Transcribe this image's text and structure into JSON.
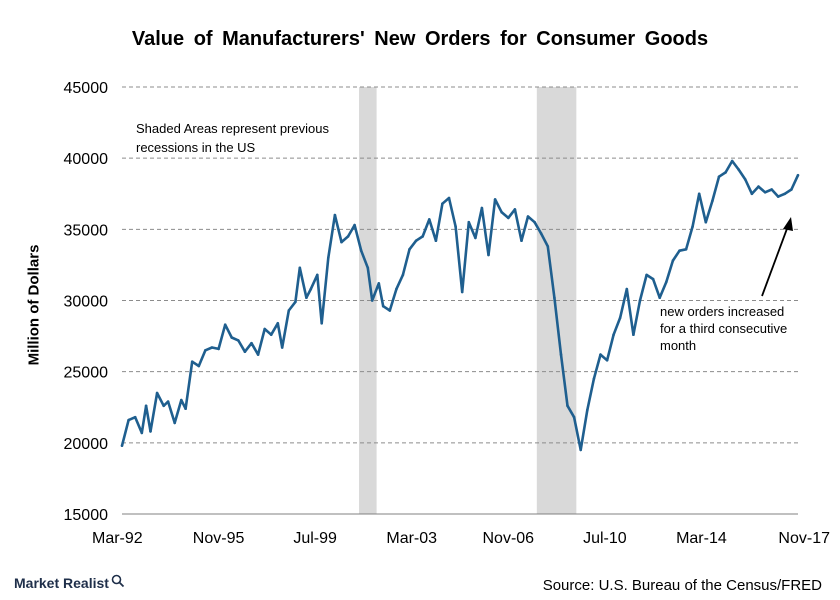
{
  "chart_data": {
    "type": "line",
    "title": "Value of Manufacturers' New Orders for Consumer Goods",
    "ylabel": "Million of Dollars",
    "xlabel": "",
    "ylim": [
      15000,
      45000
    ],
    "y_ticks": [
      15000,
      20000,
      25000,
      30000,
      35000,
      40000,
      45000
    ],
    "y_tick_labels": [
      "15000",
      "20000",
      "25000",
      "30000",
      "35000",
      "40000",
      "45000"
    ],
    "x_ticks": [
      "1992-03",
      "1995-11",
      "1999-07",
      "2003-03",
      "2006-11",
      "2010-07",
      "2014-03",
      "2017-11"
    ],
    "x_tick_labels": [
      "Mar-92",
      "Nov-95",
      "Jul-99",
      "Mar-03",
      "Nov-06",
      "Jul-10",
      "Mar-14",
      "Nov-17"
    ],
    "grid": "horizontal dashed",
    "line_color": "#1f5f8f",
    "shade_color": "#d9d9d9",
    "recessions": [
      {
        "start": "2001-03",
        "end": "2001-11"
      },
      {
        "start": "2007-12",
        "end": "2009-06"
      }
    ],
    "series": [
      {
        "points": [
          [
            "1992-03",
            19800
          ],
          [
            "1992-06",
            21600
          ],
          [
            "1992-09",
            21800
          ],
          [
            "1992-12",
            20700
          ],
          [
            "1993-02",
            22600
          ],
          [
            "1993-04",
            20800
          ],
          [
            "1993-07",
            23500
          ],
          [
            "1993-10",
            22600
          ],
          [
            "1993-12",
            22900
          ],
          [
            "1994-03",
            21400
          ],
          [
            "1994-06",
            23000
          ],
          [
            "1994-08",
            22400
          ],
          [
            "1994-11",
            25700
          ],
          [
            "1995-02",
            25400
          ],
          [
            "1995-05",
            26500
          ],
          [
            "1995-08",
            26700
          ],
          [
            "1995-11",
            26600
          ],
          [
            "1996-02",
            28300
          ],
          [
            "1996-05",
            27400
          ],
          [
            "1996-08",
            27200
          ],
          [
            "1996-11",
            26400
          ],
          [
            "1997-02",
            27000
          ],
          [
            "1997-05",
            26200
          ],
          [
            "1997-08",
            28000
          ],
          [
            "1997-11",
            27600
          ],
          [
            "1998-02",
            28400
          ],
          [
            "1998-04",
            26700
          ],
          [
            "1998-07",
            29300
          ],
          [
            "1998-10",
            29900
          ],
          [
            "1998-12",
            32300
          ],
          [
            "1999-03",
            30200
          ],
          [
            "1999-05",
            30800
          ],
          [
            "1999-08",
            31800
          ],
          [
            "1999-10",
            28400
          ],
          [
            "2000-01",
            33000
          ],
          [
            "2000-04",
            36000
          ],
          [
            "2000-07",
            34100
          ],
          [
            "2000-10",
            34500
          ],
          [
            "2001-01",
            35300
          ],
          [
            "2001-04",
            33500
          ],
          [
            "2001-07",
            32300
          ],
          [
            "2001-09",
            30000
          ],
          [
            "2001-12",
            31200
          ],
          [
            "2002-02",
            29600
          ],
          [
            "2002-05",
            29300
          ],
          [
            "2002-08",
            30800
          ],
          [
            "2002-11",
            31800
          ],
          [
            "2003-02",
            33600
          ],
          [
            "2003-05",
            34200
          ],
          [
            "2003-08",
            34500
          ],
          [
            "2003-11",
            35700
          ],
          [
            "2004-02",
            34200
          ],
          [
            "2004-05",
            36800
          ],
          [
            "2004-08",
            37200
          ],
          [
            "2004-11",
            35200
          ],
          [
            "2005-02",
            30600
          ],
          [
            "2005-05",
            35500
          ],
          [
            "2005-08",
            34400
          ],
          [
            "2005-11",
            36500
          ],
          [
            "2006-02",
            33200
          ],
          [
            "2006-05",
            37100
          ],
          [
            "2006-08",
            36200
          ],
          [
            "2006-11",
            35800
          ],
          [
            "2007-02",
            36400
          ],
          [
            "2007-05",
            34200
          ],
          [
            "2007-08",
            35900
          ],
          [
            "2007-11",
            35500
          ],
          [
            "2008-02",
            34700
          ],
          [
            "2008-05",
            33800
          ],
          [
            "2008-08",
            30200
          ],
          [
            "2008-11",
            26200
          ],
          [
            "2009-02",
            22600
          ],
          [
            "2009-05",
            21800
          ],
          [
            "2009-08",
            19500
          ],
          [
            "2009-11",
            22300
          ],
          [
            "2010-02",
            24500
          ],
          [
            "2010-05",
            26200
          ],
          [
            "2010-08",
            25800
          ],
          [
            "2010-11",
            27600
          ],
          [
            "2011-02",
            28800
          ],
          [
            "2011-05",
            30800
          ],
          [
            "2011-08",
            27600
          ],
          [
            "2011-11",
            30000
          ],
          [
            "2012-02",
            31800
          ],
          [
            "2012-05",
            31500
          ],
          [
            "2012-08",
            30200
          ],
          [
            "2012-11",
            31300
          ],
          [
            "2013-02",
            32800
          ],
          [
            "2013-05",
            33500
          ],
          [
            "2013-08",
            33600
          ],
          [
            "2013-11",
            35200
          ],
          [
            "2014-02",
            37500
          ],
          [
            "2014-05",
            35500
          ],
          [
            "2014-08",
            37000
          ],
          [
            "2014-11",
            38700
          ],
          [
            "2015-02",
            39000
          ],
          [
            "2015-05",
            39800
          ],
          [
            "2015-08",
            39200
          ],
          [
            "2015-11",
            38500
          ],
          [
            "2016-02",
            37500
          ],
          [
            "2016-05",
            38000
          ],
          [
            "2016-08",
            37600
          ],
          [
            "2016-11",
            37800
          ],
          [
            "2017-02",
            37300
          ],
          [
            "2017-05",
            37500
          ],
          [
            "2017-08",
            37800
          ],
          [
            "2017-11",
            38800
          ]
        ]
      }
    ],
    "annotations": [
      {
        "id": "shaded_note",
        "lines": [
          "Shaded Areas represent previous",
          "recessions in the US"
        ]
      },
      {
        "id": "arrow_note",
        "lines": [
          "new orders increased",
          "for a third consecutive",
          "month"
        ]
      }
    ]
  },
  "footer": {
    "brand": "Market Realist",
    "source": "Source: U.S. Bureau of the Census/FRED"
  },
  "icons": {
    "brand_icon": "magnifier-icon"
  }
}
